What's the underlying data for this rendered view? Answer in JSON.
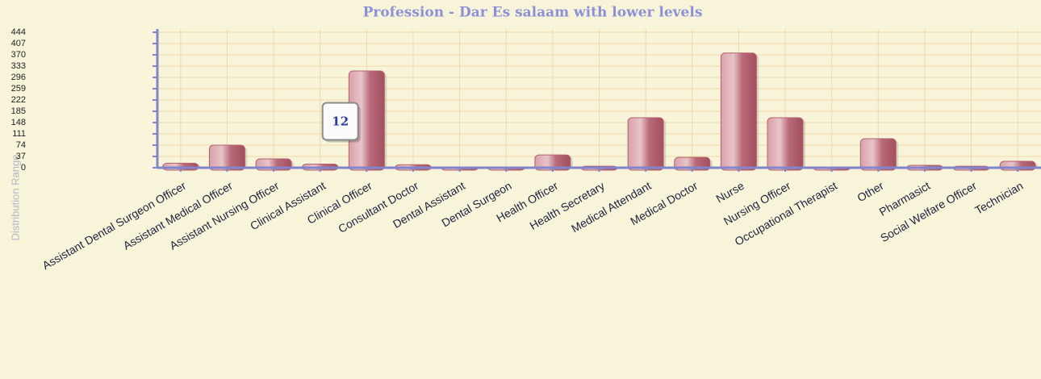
{
  "chart_data": {
    "type": "bar",
    "title": "Profession - Dar Es salaam with lower levels",
    "y_label": "Distribution Range",
    "categories": [
      "Assistant Dental Surgeon Officer",
      "Assistant Medical Officer",
      "Assistant Nursing Officer",
      "Clinical Assistant",
      "Clinical Officer",
      "Consultant Doctor",
      "Dental Assistant",
      "Dental Surgeon",
      "Health Officer",
      "Health Secretary",
      "Medical Attendant",
      "Medical Doctor",
      "Nurse",
      "Nursing Officer",
      "Occupational Therapist",
      "Other",
      "Pharmasict",
      "Social Welfare Officer",
      "Technician"
    ],
    "values": [
      15,
      74,
      29,
      12,
      317,
      10,
      2,
      2,
      42,
      5,
      164,
      34,
      376,
      164,
      2,
      95,
      8,
      5,
      21
    ],
    "color": "#b5606e",
    "ylim": [
      0,
      444
    ],
    "yticks": [
      0,
      37,
      74,
      111,
      148,
      185,
      222,
      259,
      296,
      333,
      370,
      407,
      444
    ],
    "grid": true,
    "tooltip_index": 3
  }
}
